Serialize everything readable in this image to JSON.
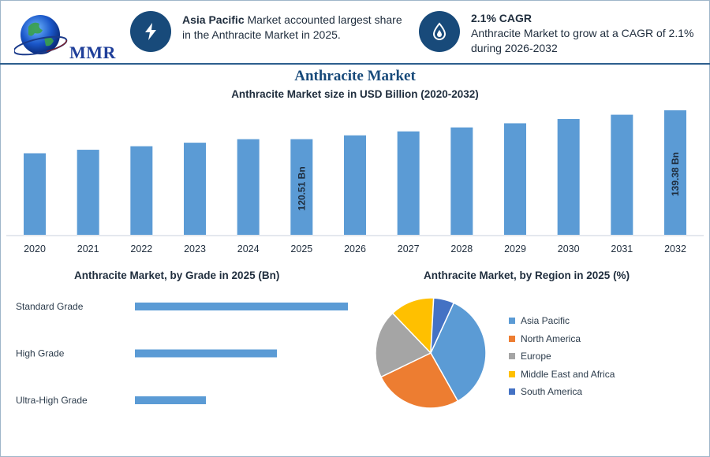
{
  "brand": {
    "logo_text": "MMR"
  },
  "kpis": [
    {
      "icon": "lightning-bolt-icon",
      "bold": "Asia Pacific",
      "text": " Market accounted largest share in the Anthracite Market in 2025."
    },
    {
      "icon": "flame-drop-icon",
      "bold": "2.1% CAGR",
      "text": "Anthracite Market to grow at a CAGR of 2.1% during 2026-2032"
    }
  ],
  "colors": {
    "accent": "#184a7a",
    "bar": "#5b9bd5",
    "title": "#184a7a"
  },
  "chart_data": [
    {
      "type": "bar",
      "title": "Anthracite Market",
      "subtitle": "Anthracite Market size in USD Billion (2020-2032)",
      "categories": [
        "2020",
        "2021",
        "2022",
        "2023",
        "2024",
        "2025",
        "2026",
        "2027",
        "2028",
        "2029",
        "2030",
        "2031",
        "2032"
      ],
      "values": [
        111.3,
        113.6,
        115.9,
        118.2,
        120.5,
        120.51,
        123.0,
        125.6,
        128.2,
        130.9,
        133.7,
        136.5,
        139.38
      ],
      "data_labels": {
        "5": "120.51 Bn",
        "12": "139.38 Bn"
      },
      "ylim": [
        0,
        140
      ],
      "color": "#5b9bd5"
    },
    {
      "type": "bar",
      "orientation": "horizontal",
      "title": "Anthracite Market, by Grade in 2025 (Bn)",
      "categories": [
        "Standard Grade",
        "High Grade",
        "Ultra-High Grade"
      ],
      "values": [
        60,
        40,
        20
      ],
      "color": "#5b9bd5"
    },
    {
      "type": "pie",
      "title": "Anthracite Market, by Region in 2025 (%)",
      "labels": [
        "Asia Pacific",
        "North America",
        "Europe",
        "Middle East and Africa",
        "South America"
      ],
      "values": [
        35,
        26,
        20,
        13,
        6
      ],
      "colors": [
        "#5b9bd5",
        "#ed7d31",
        "#a5a5a5",
        "#ffc000",
        "#4472c4"
      ]
    }
  ]
}
